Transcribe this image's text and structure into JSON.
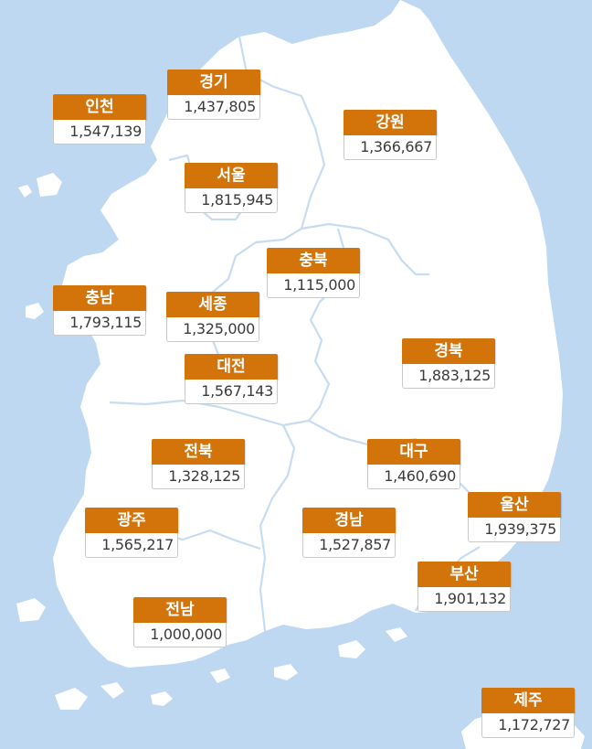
{
  "regions": [
    {
      "key": "incheon",
      "name": "인천",
      "value": "1,547,139"
    },
    {
      "key": "gyeonggi",
      "name": "경기",
      "value": "1,437,805"
    },
    {
      "key": "gangwon",
      "name": "강원",
      "value": "1,366,667"
    },
    {
      "key": "seoul",
      "name": "서울",
      "value": "1,815,945"
    },
    {
      "key": "chungbuk",
      "name": "충북",
      "value": "1,115,000"
    },
    {
      "key": "chungnam",
      "name": "충남",
      "value": "1,793,115"
    },
    {
      "key": "sejong",
      "name": "세종",
      "value": "1,325,000"
    },
    {
      "key": "gyeongbuk",
      "name": "경북",
      "value": "1,883,125"
    },
    {
      "key": "daejeon",
      "name": "대전",
      "value": "1,567,143"
    },
    {
      "key": "jeonbuk",
      "name": "전북",
      "value": "1,328,125"
    },
    {
      "key": "daegu",
      "name": "대구",
      "value": "1,460,690"
    },
    {
      "key": "ulsan",
      "name": "울산",
      "value": "1,939,375"
    },
    {
      "key": "gwangju",
      "name": "광주",
      "value": "1,565,217"
    },
    {
      "key": "gyeongnam",
      "name": "경남",
      "value": "1,527,857"
    },
    {
      "key": "busan",
      "name": "부산",
      "value": "1,901,132"
    },
    {
      "key": "jeonnam",
      "name": "전남",
      "value": "1,000,000"
    },
    {
      "key": "jeju",
      "name": "제주",
      "value": "1,172,727"
    }
  ],
  "colors": {
    "sea": "#bfd8f2",
    "land": "#ffffff",
    "border": "#c6dcf2",
    "label_bg": "#d2740a",
    "label_text": "#ffffff"
  }
}
